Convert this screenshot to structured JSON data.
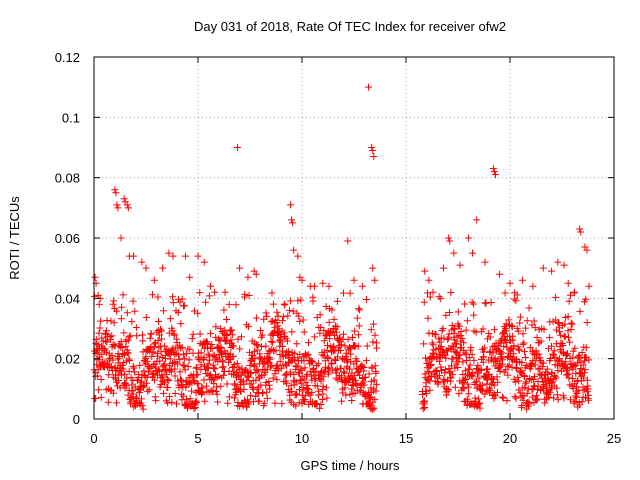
{
  "chart_data": {
    "type": "scatter",
    "title": "Day 031 of 2018, Rate Of TEC Index for receiver ofw2",
    "xlabel": "GPS time / hours",
    "ylabel": "ROTI / TECUs",
    "xlim": [
      0,
      25
    ],
    "ylim": [
      0,
      0.12
    ],
    "xticks": [
      0,
      5,
      10,
      15,
      20,
      25
    ],
    "xtick_labels": [
      "0",
      "5",
      "10",
      "15",
      "20",
      "25"
    ],
    "yticks": [
      0,
      0.02,
      0.04,
      0.06,
      0.08,
      0.1,
      0.12
    ],
    "ytick_labels": [
      "0",
      "0.02",
      "0.04",
      "0.06",
      "0.08",
      "0.1",
      "0.12"
    ],
    "grid": true,
    "marker": "+",
    "color": "#ff0000",
    "data_gap": [
      13.6,
      15.8
    ],
    "series": [
      {
        "name": "ROTI",
        "points": [
          [
            0.05,
            0.047
          ],
          [
            0.1,
            0.045
          ],
          [
            0.2,
            0.041
          ],
          [
            0.3,
            0.04
          ],
          [
            0.25,
            0.038
          ],
          [
            1.0,
            0.076
          ],
          [
            1.05,
            0.075
          ],
          [
            1.1,
            0.071
          ],
          [
            1.15,
            0.07
          ],
          [
            1.3,
            0.06
          ],
          [
            1.45,
            0.073
          ],
          [
            1.5,
            0.072
          ],
          [
            1.6,
            0.071
          ],
          [
            1.65,
            0.07
          ],
          [
            1.7,
            0.054
          ],
          [
            1.9,
            0.054
          ],
          [
            2.3,
            0.052
          ],
          [
            2.5,
            0.05
          ],
          [
            2.9,
            0.046
          ],
          [
            3.3,
            0.05
          ],
          [
            3.6,
            0.055
          ],
          [
            3.8,
            0.054
          ],
          [
            4.4,
            0.054
          ],
          [
            4.6,
            0.047
          ],
          [
            5.0,
            0.054
          ],
          [
            5.3,
            0.052
          ],
          [
            5.6,
            0.044
          ],
          [
            5.8,
            0.042
          ],
          [
            6.3,
            0.042
          ],
          [
            6.5,
            0.038
          ],
          [
            6.9,
            0.09
          ],
          [
            7.0,
            0.05
          ],
          [
            7.4,
            0.047
          ],
          [
            7.7,
            0.049
          ],
          [
            7.8,
            0.048
          ],
          [
            8.3,
            0.034
          ],
          [
            8.8,
            0.032
          ],
          [
            9.4,
            0.036
          ],
          [
            9.45,
            0.071
          ],
          [
            9.5,
            0.066
          ],
          [
            9.55,
            0.065
          ],
          [
            9.6,
            0.056
          ],
          [
            9.8,
            0.054
          ],
          [
            9.9,
            0.047
          ],
          [
            10.0,
            0.046
          ],
          [
            10.4,
            0.044
          ],
          [
            10.6,
            0.044
          ],
          [
            11.0,
            0.045
          ],
          [
            11.3,
            0.044
          ],
          [
            11.7,
            0.039
          ],
          [
            12.2,
            0.059
          ],
          [
            12.5,
            0.046
          ],
          [
            12.9,
            0.044
          ],
          [
            13.2,
            0.11
          ],
          [
            13.35,
            0.09
          ],
          [
            13.4,
            0.089
          ],
          [
            13.45,
            0.087
          ],
          [
            13.4,
            0.05
          ],
          [
            13.5,
            0.046
          ],
          [
            15.9,
            0.049
          ],
          [
            16.1,
            0.046
          ],
          [
            16.3,
            0.042
          ],
          [
            16.8,
            0.05
          ],
          [
            17.05,
            0.06
          ],
          [
            17.1,
            0.059
          ],
          [
            17.3,
            0.055
          ],
          [
            17.6,
            0.051
          ],
          [
            18.0,
            0.06
          ],
          [
            18.2,
            0.055
          ],
          [
            18.4,
            0.066
          ],
          [
            18.8,
            0.052
          ],
          [
            19.2,
            0.083
          ],
          [
            19.25,
            0.082
          ],
          [
            19.3,
            0.081
          ],
          [
            19.5,
            0.048
          ],
          [
            20.0,
            0.045
          ],
          [
            20.6,
            0.046
          ],
          [
            21.1,
            0.044
          ],
          [
            21.6,
            0.05
          ],
          [
            22.0,
            0.049
          ],
          [
            22.3,
            0.052
          ],
          [
            22.6,
            0.051
          ],
          [
            22.8,
            0.045
          ],
          [
            23.1,
            0.042
          ],
          [
            23.35,
            0.063
          ],
          [
            23.4,
            0.062
          ],
          [
            23.6,
            0.057
          ],
          [
            23.7,
            0.056
          ],
          [
            23.8,
            0.044
          ]
        ],
        "dense_band": {
          "segments": [
            [
              0.0,
              13.6
            ],
            [
              15.8,
              23.8
            ]
          ],
          "typical_min": 0.005,
          "typical_max": 0.03,
          "typical_center": 0.016
        }
      }
    ]
  }
}
